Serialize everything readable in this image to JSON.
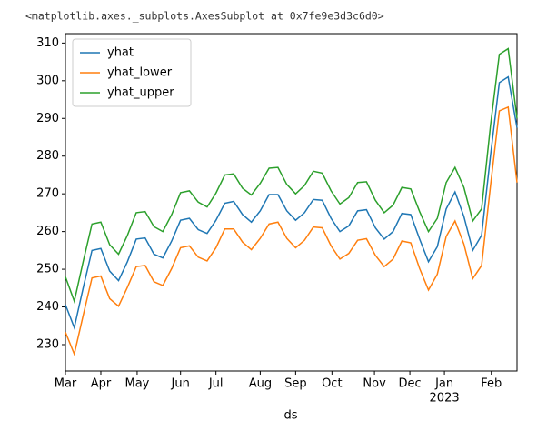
{
  "header": "<matplotlib.axes._subplots.AxesSubplot at 0x7fe9e3d3c6d0>",
  "chart_data": {
    "type": "line",
    "xlabel": "ds",
    "x": [
      0,
      1,
      2,
      3,
      4,
      5,
      6,
      7,
      8,
      9,
      10,
      11,
      12,
      13,
      14,
      15,
      16,
      17,
      18,
      19,
      20,
      21,
      22,
      23,
      24,
      25,
      26,
      27,
      28,
      29,
      30,
      31,
      32,
      33,
      34,
      35,
      36,
      37,
      38,
      39,
      40,
      41,
      42,
      43,
      44,
      45,
      46,
      47,
      48,
      49,
      50,
      51
    ],
    "xlim": [
      0,
      51
    ],
    "xticks": [
      {
        "value": 0,
        "label": "Mar"
      },
      {
        "value": 4.0,
        "label": "Apr"
      },
      {
        "value": 8.1,
        "label": "May"
      },
      {
        "value": 13.0,
        "label": "Jun"
      },
      {
        "value": 17.0,
        "label": "Jul"
      },
      {
        "value": 22.0,
        "label": "Aug"
      },
      {
        "value": 26.0,
        "label": "Sep"
      },
      {
        "value": 30.1,
        "label": "Oct"
      },
      {
        "value": 34.9,
        "label": "Nov"
      },
      {
        "value": 38.9,
        "label": "Dec"
      },
      {
        "value": 42.8,
        "label": "Jan"
      },
      {
        "value": 48.1,
        "label": "Feb"
      }
    ],
    "x_year_label": "2023",
    "ylim": [
      223,
      312.5
    ],
    "yticks": [
      230,
      240,
      250,
      260,
      270,
      280,
      290,
      300,
      310
    ],
    "legend": "upper left",
    "series": [
      {
        "name": "yhat",
        "color": "#1f77b4",
        "values": [
          240.6,
          234.5,
          245,
          255,
          255.5,
          249.5,
          247,
          252,
          258,
          258.3,
          254,
          253,
          257.5,
          263,
          263.5,
          260.5,
          259.5,
          263,
          267.5,
          268,
          264.5,
          262.5,
          265.5,
          269.8,
          269.8,
          265.5,
          263,
          265,
          268.5,
          268.3,
          263.5,
          260,
          261.5,
          265.5,
          265.8,
          261,
          258,
          260,
          264.8,
          264.5,
          258,
          252,
          256,
          266,
          270.5,
          264,
          255,
          259,
          280,
          299.5,
          301,
          287.5
        ]
      },
      {
        "name": "yhat_lower",
        "color": "#ff7f0e",
        "values": [
          233.3,
          227.5,
          237.7,
          247.7,
          248.2,
          242.2,
          240.2,
          245.2,
          250.7,
          251,
          246.7,
          245.7,
          250.2,
          255.7,
          256.2,
          253.2,
          252.2,
          255.7,
          260.7,
          260.7,
          257.2,
          255.2,
          258.2,
          262,
          262.5,
          258.2,
          255.7,
          257.7,
          261.2,
          261,
          256.2,
          252.7,
          254.2,
          257.7,
          258.1,
          253.7,
          250.7,
          252.7,
          257.5,
          257,
          250.2,
          244.5,
          248.7,
          258.7,
          262.8,
          256.7,
          247.5,
          251,
          272,
          292,
          293,
          273
        ]
      },
      {
        "name": "yhat_upper",
        "color": "#2ca02c",
        "values": [
          248,
          241.5,
          252,
          262,
          262.5,
          256.5,
          254,
          259,
          265,
          265.3,
          261.3,
          260,
          264.5,
          270.3,
          270.8,
          267.8,
          266.5,
          270.2,
          275,
          275.3,
          271.5,
          269.7,
          272.8,
          276.8,
          277,
          272.5,
          270,
          272.2,
          276,
          275.5,
          270.8,
          267.3,
          269,
          273,
          273.2,
          268.3,
          265,
          267,
          271.7,
          271.3,
          265.3,
          260,
          263.5,
          273,
          277,
          271.7,
          262.8,
          266,
          288,
          307,
          308.5,
          290
        ]
      }
    ]
  }
}
